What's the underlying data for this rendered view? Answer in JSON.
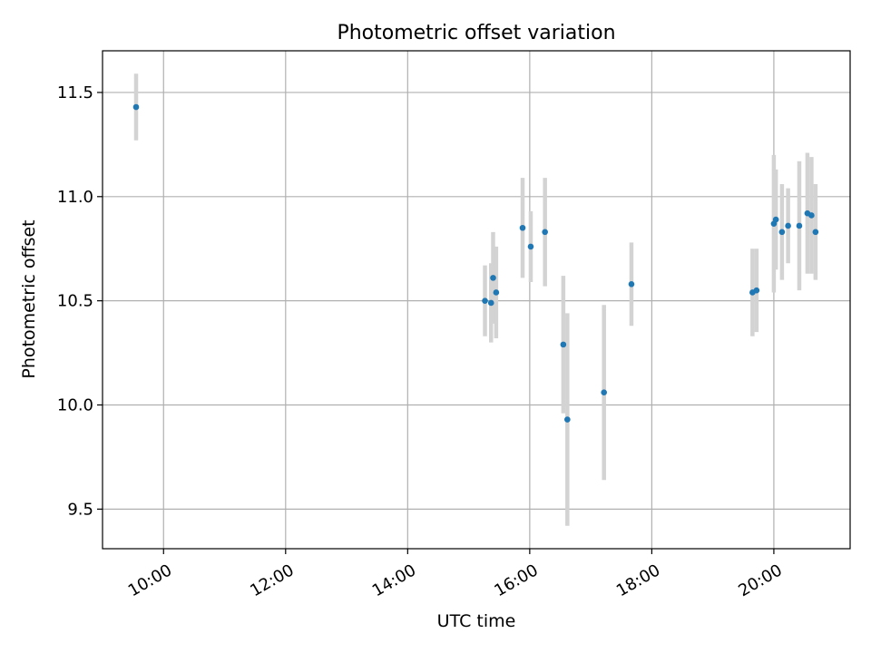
{
  "chart_data": {
    "type": "scatter",
    "title": "Photometric offset variation",
    "xlabel": "UTC time",
    "ylabel": "Photometric offset",
    "x_unit": "hours UTC",
    "xlim": [
      "09:00",
      "21:15"
    ],
    "ylim": [
      9.31,
      11.7
    ],
    "x_ticks": [
      "10:00",
      "12:00",
      "14:00",
      "16:00",
      "18:00",
      "20:00"
    ],
    "y_ticks": [
      "9.5",
      "10.0",
      "10.5",
      "11.0",
      "11.5"
    ],
    "grid": true,
    "error_bars": true,
    "point_color": "#1f77b4",
    "errorbar_color": "#d3d3d3",
    "series": [
      {
        "points": [
          {
            "x": "09:33",
            "y": 11.43,
            "err": 0.16
          },
          {
            "x": "15:16",
            "y": 10.5,
            "err": 0.17
          },
          {
            "x": "15:22",
            "y": 10.49,
            "err": 0.19
          },
          {
            "x": "15:24",
            "y": 10.61,
            "err": 0.22
          },
          {
            "x": "15:27",
            "y": 10.54,
            "err": 0.22
          },
          {
            "x": "15:53",
            "y": 10.85,
            "err": 0.24
          },
          {
            "x": "16:01",
            "y": 10.76,
            "err": 0.17
          },
          {
            "x": "16:15",
            "y": 10.83,
            "err": 0.26
          },
          {
            "x": "16:33",
            "y": 10.29,
            "err": 0.33
          },
          {
            "x": "16:37",
            "y": 9.93,
            "err": 0.51
          },
          {
            "x": "17:13",
            "y": 10.06,
            "err": 0.42
          },
          {
            "x": "17:40",
            "y": 10.58,
            "err": 0.2
          },
          {
            "x": "19:39",
            "y": 10.54,
            "err": 0.21
          },
          {
            "x": "19:43",
            "y": 10.55,
            "err": 0.2
          },
          {
            "x": "20:00",
            "y": 10.87,
            "err": 0.33
          },
          {
            "x": "20:02",
            "y": 10.89,
            "err": 0.24
          },
          {
            "x": "20:08",
            "y": 10.83,
            "err": 0.23
          },
          {
            "x": "20:14",
            "y": 10.86,
            "err": 0.18
          },
          {
            "x": "20:25",
            "y": 10.86,
            "err": 0.31
          },
          {
            "x": "20:33",
            "y": 10.92,
            "err": 0.29
          },
          {
            "x": "20:37",
            "y": 10.91,
            "err": 0.28
          },
          {
            "x": "20:41",
            "y": 10.83,
            "err": 0.23
          }
        ]
      }
    ]
  }
}
